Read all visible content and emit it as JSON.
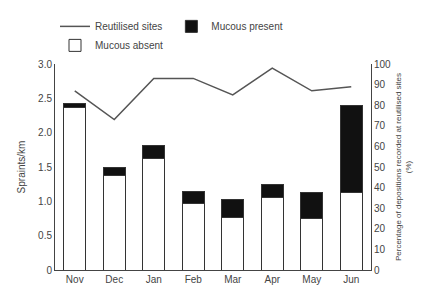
{
  "chart_data": {
    "type": "bar",
    "stacked": true,
    "categories": [
      "Nov",
      "Dec",
      "Jan",
      "Feb",
      "Mar",
      "Apr",
      "May",
      "Jun"
    ],
    "series": [
      {
        "name": "Mucous absent",
        "color": "#ffffff",
        "values": [
          2.36,
          1.38,
          1.62,
          0.97,
          0.76,
          1.06,
          0.75,
          1.13
        ]
      },
      {
        "name": "Mucous present",
        "color": "#111111",
        "values": [
          0.06,
          0.12,
          0.2,
          0.18,
          0.26,
          0.18,
          0.38,
          1.27
        ]
      },
      {
        "name": "Reutilised sites",
        "type": "line",
        "axis": "y2",
        "color": "#555555",
        "values": [
          87,
          73,
          93,
          93,
          85,
          98,
          87,
          89
        ]
      }
    ],
    "ylabel": "Spraints/km",
    "y2label": "Percentage of depositions recorded at reutilised sites\n(%)",
    "ylim": [
      0,
      3
    ],
    "yticks": [
      0,
      0.5,
      {
        "value": 1,
        "label": "1.0"
      },
      1.5,
      {
        "value": 2,
        "label": "2.0"
      },
      2.5,
      {
        "value": 3,
        "label": "3.0"
      }
    ],
    "y2lim": [
      0,
      100
    ],
    "y2ticks": [
      0,
      10,
      20,
      30,
      40,
      50,
      60,
      70,
      80,
      90,
      100
    ],
    "grid": false,
    "legend": "top"
  }
}
